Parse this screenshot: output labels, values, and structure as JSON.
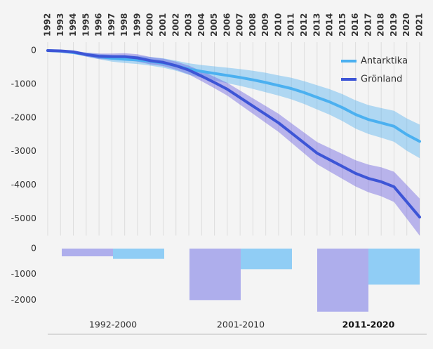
{
  "chart_data": [
    {
      "type": "line",
      "x": [
        1992,
        1993,
        1994,
        1995,
        1996,
        1997,
        1998,
        1999,
        2000,
        2001,
        2002,
        2003,
        2004,
        2005,
        2006,
        2007,
        2008,
        2009,
        2010,
        2011,
        2012,
        2013,
        2014,
        2015,
        2016,
        2017,
        2018,
        2019,
        2020,
        2021
      ],
      "series": [
        {
          "name": "Antarktika",
          "color": "#4bb0f0",
          "band_color": "rgba(90,180,240,0.45)",
          "values": [
            0,
            -20,
            -60,
            -120,
            -180,
            -230,
            -260,
            -280,
            -320,
            -370,
            -450,
            -550,
            -620,
            -680,
            -740,
            -800,
            -870,
            -950,
            -1040,
            -1130,
            -1250,
            -1390,
            -1530,
            -1700,
            -1900,
            -2050,
            -2150,
            -2250,
            -2500,
            -2700
          ],
          "error": [
            0,
            20,
            40,
            60,
            80,
            100,
            110,
            120,
            130,
            140,
            150,
            170,
            190,
            210,
            230,
            250,
            270,
            290,
            300,
            320,
            340,
            360,
            380,
            400,
            420,
            430,
            440,
            460,
            480,
            500
          ]
        },
        {
          "name": "Grönland",
          "color": "#3d55d6",
          "band_color": "rgba(110,100,225,0.45)",
          "values": [
            0,
            -10,
            -40,
            -120,
            -170,
            -180,
            -180,
            -220,
            -300,
            -350,
            -450,
            -580,
            -760,
            -950,
            -1150,
            -1400,
            -1650,
            -1900,
            -2150,
            -2450,
            -2750,
            -3050,
            -3250,
            -3450,
            -3650,
            -3800,
            -3900,
            -4050,
            -4500,
            -4950
          ],
          "error": [
            0,
            20,
            40,
            60,
            80,
            90,
            100,
            110,
            110,
            110,
            120,
            130,
            150,
            170,
            190,
            210,
            230,
            250,
            270,
            290,
            310,
            330,
            350,
            370,
            390,
            410,
            430,
            450,
            500,
            550
          ]
        }
      ],
      "ylim": [
        -5500,
        250
      ],
      "yticks": [
        0,
        -1000,
        -2000,
        -3000,
        -4000,
        -5000
      ],
      "grid": true,
      "legend": "top-right"
    },
    {
      "type": "bar",
      "categories": [
        "1992-2000",
        "2001-2010",
        "2011-2020"
      ],
      "series": [
        {
          "name": "Grönland",
          "color": "#aeaeec",
          "values": [
            -300,
            -2000,
            -2450
          ]
        },
        {
          "name": "Antarktika",
          "color": "#90cdf5",
          "values": [
            -400,
            -800,
            -1400
          ]
        }
      ],
      "ylim": [
        -2700,
        300
      ],
      "yticks": [
        0,
        -1000,
        -2000
      ]
    }
  ]
}
